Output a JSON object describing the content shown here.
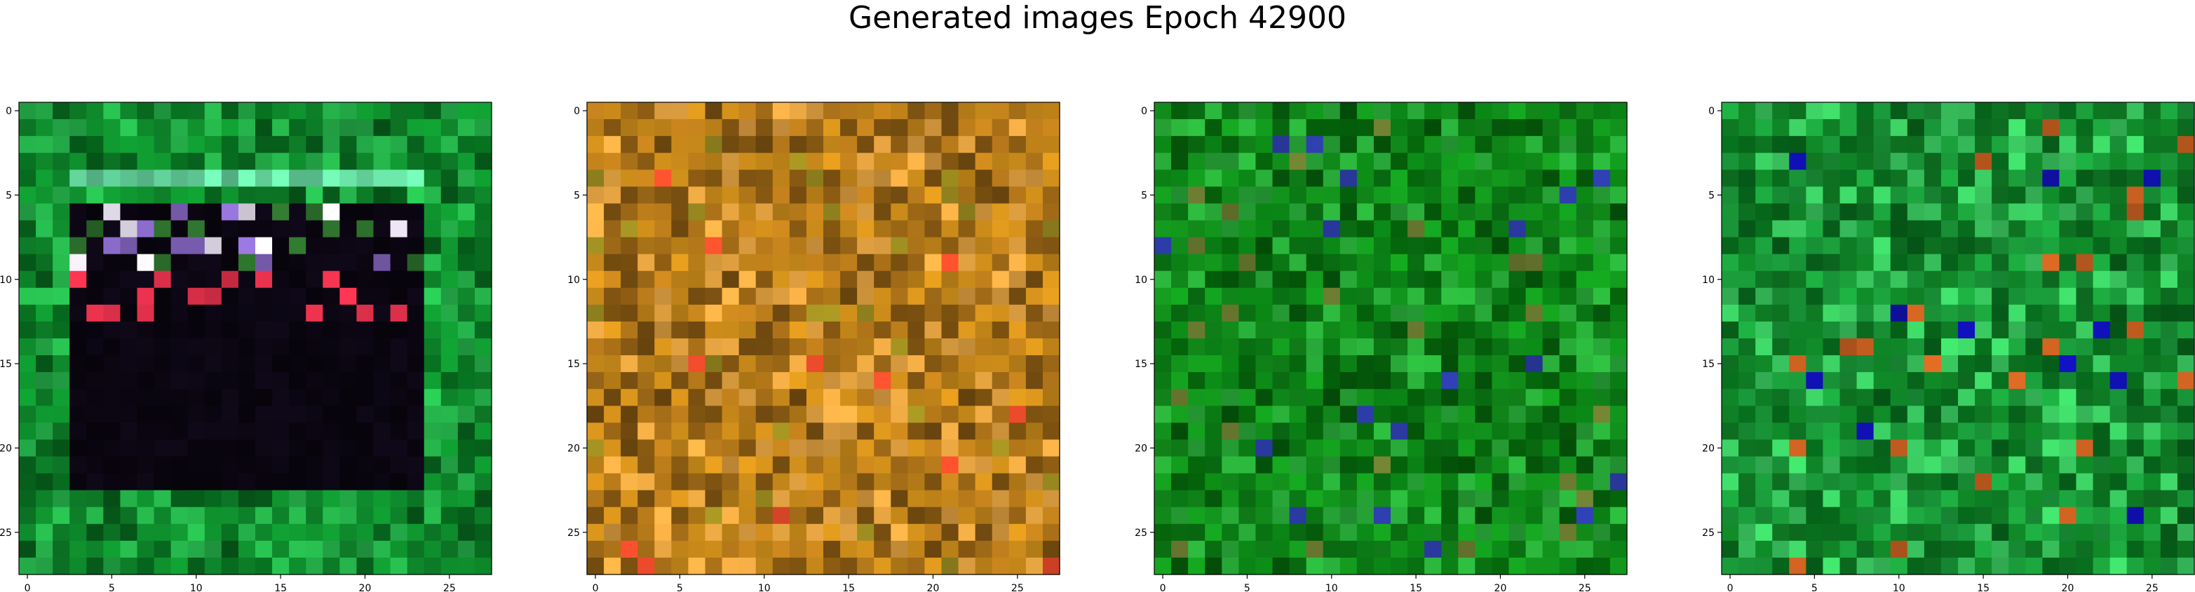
{
  "figure": {
    "title": "Generated images Epoch 42900"
  },
  "chart_data": [
    {
      "type": "heatmap",
      "rows": 28,
      "cols": 28,
      "xticks": [
        0,
        5,
        10,
        15,
        20,
        25
      ],
      "yticks": [
        0,
        5,
        10,
        15,
        20,
        25
      ],
      "xlim": [
        -0.5,
        27.5
      ],
      "ylim": [
        27.5,
        -0.5
      ],
      "style": "border",
      "palette": {
        "frame": "#0e8a2c",
        "frame_alt": "#25b04a",
        "frame_dark": "#06621c",
        "inner": "#0b0612",
        "band": "#66d9a0",
        "highlight": "#e8e0f0",
        "accent": "#e0304a"
      }
    },
    {
      "type": "heatmap",
      "rows": 28,
      "cols": 28,
      "xticks": [
        0,
        5,
        10,
        15,
        20,
        25
      ],
      "yticks": [
        0,
        5,
        10,
        15,
        20,
        25
      ],
      "xlim": [
        -0.5,
        27.5
      ],
      "ylim": [
        27.5,
        -0.5
      ],
      "style": "orange",
      "palette": {
        "base": "#c98a1a",
        "alt": "#b5781a",
        "light": "#e0a040",
        "dark": "#7a5010",
        "accent": "#e84a2a",
        "olive": "#9a8a20"
      }
    },
    {
      "type": "heatmap",
      "rows": 28,
      "cols": 28,
      "xticks": [
        0,
        5,
        10,
        15,
        20,
        25
      ],
      "yticks": [
        0,
        5,
        10,
        15,
        20,
        25
      ],
      "xlim": [
        -0.5,
        27.5
      ],
      "ylim": [
        27.5,
        -0.5
      ],
      "style": "green",
      "palette": {
        "base": "#0a7a14",
        "alt": "#12921c",
        "light": "#28a838",
        "dark": "#045a0a",
        "accent": "#2a3aa0",
        "olive": "#6a7a30"
      }
    },
    {
      "type": "heatmap",
      "rows": 28,
      "cols": 28,
      "xticks": [
        0,
        5,
        10,
        15,
        20,
        25
      ],
      "yticks": [
        0,
        5,
        10,
        15,
        20,
        25
      ],
      "xlim": [
        -0.5,
        27.5
      ],
      "ylim": [
        27.5,
        -0.5
      ],
      "style": "green2",
      "palette": {
        "base": "#1a9a3a",
        "alt": "#0e7a24",
        "light": "#3ac860",
        "dark": "#06621a",
        "accent": "#1010b0",
        "olive": "#c86020"
      }
    }
  ]
}
